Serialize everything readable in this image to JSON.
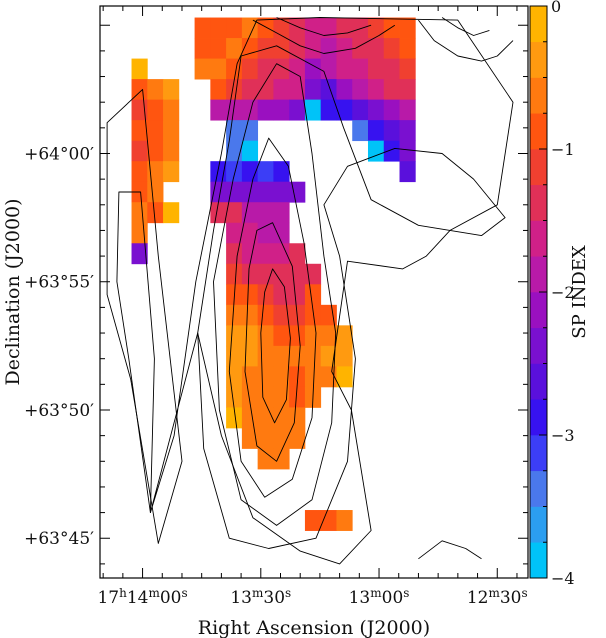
{
  "chart_data": {
    "type": "heatmap",
    "title": "",
    "xlabel": "Right Ascension (J2000)",
    "ylabel": "Declination (J2000)",
    "x_ticks": [
      {
        "ra_s": 840,
        "h": "17",
        "m": "14",
        "s": "00",
        "full": true
      },
      {
        "ra_s": 810,
        "m": "13",
        "s": "30"
      },
      {
        "ra_s": 780,
        "m": "13",
        "s": "00"
      },
      {
        "ra_s": 750,
        "m": "12",
        "s": "30"
      }
    ],
    "y_ticks": [
      {
        "dec_min": 45,
        "label": "+63°45′"
      },
      {
        "dec_min": 50,
        "label": "+63°50′"
      },
      {
        "dec_min": 55,
        "label": "+63°55′"
      },
      {
        "dec_min": 60,
        "label": "+64°00′"
      }
    ],
    "x_range_ra_s": [
      850.8,
      742.2
    ],
    "y_range_dec_min": [
      43.45,
      65.75
    ],
    "colorbar": {
      "label": "SP INDEX",
      "range": [
        -4,
        0
      ],
      "ticks": [
        0,
        -1,
        -2,
        -3,
        -4
      ],
      "tick_labels": [
        "0",
        "−1",
        "−2",
        "−3",
        "−4"
      ],
      "colors": [
        "#00c3f8",
        "#2b9ef0",
        "#4a78ec",
        "#3c3ef6",
        "#3712f0",
        "#5a10dc",
        "#7a10d0",
        "#9a10c0",
        "#b81aa8",
        "#d02088",
        "#e03058",
        "#f04030",
        "#ff5510",
        "#ff7a10",
        "#ff9a10",
        "#ffb400"
      ]
    },
    "cell_size": {
      "ra_s": 4.0,
      "dec_min": 0.8
    },
    "first_cell_ra_s": 842.8,
    "first_cell_dec_min": 65.3,
    "grid_legend": "Each row lists cell values from the first column east to west; null = blank",
    "grid": [
      [
        null,
        null,
        null,
        null,
        -0.8,
        -0.8,
        -0.8,
        -0.7,
        -1.0,
        -1.1,
        -1.3,
        -1.6,
        -1.6,
        -1.5,
        -1.3,
        -1.1,
        -1.0,
        -0.9
      ],
      [
        null,
        null,
        null,
        null,
        -0.8,
        -0.8,
        -0.7,
        -0.9,
        -1.1,
        -1.2,
        -1.4,
        -1.7,
        -1.9,
        -1.6,
        -1.4,
        -1.3,
        -1.1,
        -1.0
      ],
      [
        -0.2,
        null,
        null,
        null,
        -0.6,
        -0.7,
        -0.9,
        -1.1,
        -1.3,
        -1.4,
        -1.6,
        -2.1,
        -2.0,
        -1.7,
        -1.6,
        -1.4,
        -1.3,
        -1.2
      ],
      [
        -0.8,
        -0.6,
        -0.5,
        null,
        null,
        -1.0,
        -1.2,
        -1.3,
        -1.5,
        -1.6,
        -1.7,
        -2.3,
        -2.6,
        -2.1,
        -1.8,
        -1.6,
        -1.5,
        -1.4
      ],
      [
        -1.2,
        -0.9,
        -0.7,
        null,
        null,
        -1.9,
        -1.9,
        -1.8,
        -2.1,
        -2.2,
        -2.4,
        -4.0,
        -2.9,
        -2.8,
        -2.6,
        -2.4,
        -2.2,
        -2.0
      ],
      [
        -0.9,
        -0.8,
        -0.6,
        null,
        null,
        null,
        -3.5,
        -3.3,
        null,
        null,
        null,
        null,
        null,
        null,
        -3.3,
        -2.8,
        -2.6,
        -2.3
      ],
      [
        -1.1,
        -0.9,
        -0.6,
        null,
        null,
        null,
        -3.5,
        -4.0,
        null,
        null,
        null,
        null,
        null,
        null,
        null,
        -4.0,
        -3.0,
        -2.4
      ],
      [
        -0.8,
        -0.6,
        -0.3,
        null,
        null,
        -3.0,
        -3.1,
        -3.0,
        -3.1,
        -2.9,
        null,
        null,
        null,
        null,
        null,
        null,
        null,
        -2.6
      ],
      [
        -0.9,
        -0.6,
        null,
        null,
        null,
        -2.5,
        -2.4,
        -2.5,
        -2.5,
        -2.5,
        -2.4,
        null,
        null,
        null,
        null,
        null,
        null,
        null
      ],
      [
        -0.7,
        -0.8,
        -0.2,
        null,
        null,
        -1.3,
        -1.5,
        -1.8,
        -1.9,
        -2.0,
        null,
        null,
        null,
        null,
        null,
        null,
        null,
        null
      ],
      [
        -0.7,
        null,
        null,
        null,
        null,
        null,
        -1.7,
        -1.7,
        -1.9,
        -1.8,
        null,
        null,
        null,
        null,
        null,
        null,
        null,
        null
      ],
      [
        -2.3,
        null,
        null,
        null,
        null,
        null,
        -1.5,
        -1.6,
        -1.7,
        -1.6,
        -1.4,
        null,
        null,
        null,
        null,
        null,
        null,
        null
      ],
      [
        null,
        null,
        null,
        null,
        null,
        null,
        -1.1,
        -1.3,
        -1.5,
        -1.5,
        -1.5,
        -1.3,
        null,
        null,
        null,
        null,
        null,
        null
      ],
      [
        null,
        null,
        null,
        null,
        null,
        null,
        -0.8,
        -1.0,
        -1.2,
        -1.3,
        -1.3,
        -1.0,
        null,
        null,
        null,
        null,
        null,
        null
      ],
      [
        null,
        null,
        null,
        null,
        null,
        null,
        -0.6,
        -0.7,
        -1.0,
        -1.1,
        -1.1,
        -0.9,
        -0.8,
        null,
        null,
        null,
        null,
        null
      ],
      [
        null,
        null,
        null,
        null,
        null,
        null,
        -0.4,
        -0.5,
        -0.7,
        -0.8,
        -0.8,
        -0.7,
        -0.6,
        -0.4,
        null,
        null,
        null,
        null
      ],
      [
        null,
        null,
        null,
        null,
        null,
        null,
        -0.4,
        -0.5,
        -0.6,
        -0.7,
        -0.7,
        -0.6,
        -0.5,
        -0.3,
        null,
        null,
        null,
        null
      ],
      [
        null,
        null,
        null,
        null,
        null,
        null,
        -0.5,
        -0.6,
        -0.7,
        -0.7,
        -0.8,
        -0.7,
        -0.6,
        -0.2,
        null,
        null,
        null,
        null
      ],
      [
        null,
        null,
        null,
        null,
        null,
        null,
        -0.3,
        -0.6,
        -0.7,
        -0.7,
        -0.8,
        -0.7,
        null,
        null,
        null,
        null,
        null,
        null
      ],
      [
        null,
        null,
        null,
        null,
        null,
        null,
        -0.2,
        -0.7,
        -0.7,
        -0.7,
        -0.6,
        null,
        null,
        null,
        null,
        null,
        null,
        null
      ],
      [
        null,
        null,
        null,
        null,
        null,
        null,
        null,
        -0.7,
        -0.6,
        -0.6,
        -0.6,
        null,
        null,
        null,
        null,
        null,
        null,
        null
      ],
      [
        null,
        null,
        null,
        null,
        null,
        null,
        null,
        null,
        -0.6,
        -0.6,
        null,
        null,
        null,
        null,
        null,
        null,
        null,
        null
      ],
      [
        null,
        null,
        null,
        null,
        null,
        null,
        null,
        null,
        null,
        null,
        null,
        null,
        null,
        null,
        null,
        null,
        null,
        null
      ],
      [
        null,
        null,
        null,
        null,
        null,
        null,
        null,
        null,
        null,
        null,
        null,
        null,
        null,
        null,
        null,
        null,
        null,
        null
      ],
      [
        null,
        null,
        null,
        null,
        null,
        null,
        null,
        null,
        null,
        null,
        null,
        -0.8,
        -0.8,
        -0.7,
        null,
        null,
        null,
        null
      ]
    ],
    "contours": [
      {
        "name": "west-outer",
        "points": [
          [
            836.0,
            44.8
          ],
          [
            843.0,
            51.2
          ],
          [
            849.0,
            54.5
          ],
          [
            849.0,
            61.2
          ],
          [
            840.0,
            62.5
          ],
          [
            836.0,
            56.0
          ],
          [
            830.0,
            48.0
          ]
        ]
      },
      {
        "name": "west-inner",
        "points": [
          [
            838.0,
            46.0
          ],
          [
            843.5,
            52.0
          ],
          [
            846.5,
            55.0
          ],
          [
            846.0,
            58.5
          ],
          [
            840.5,
            58.5
          ],
          [
            837.0,
            52.0
          ]
        ]
      },
      {
        "name": "main-1",
        "points": [
          [
            838.0,
            46.0
          ],
          [
            832.0,
            49.0
          ],
          [
            826.5,
            55.0
          ],
          [
            820.0,
            60.0
          ],
          [
            816.0,
            63.5
          ],
          [
            811.0,
            65.2
          ],
          [
            795.0,
            65.3
          ],
          [
            760.0,
            65.2
          ],
          [
            746.0,
            62.0
          ],
          [
            750.0,
            58.0
          ],
          [
            762.0,
            57.0
          ],
          [
            768.0,
            56.0
          ],
          [
            774.0,
            55.5
          ],
          [
            788.0,
            55.8
          ],
          [
            792.0,
            51.5
          ],
          [
            787.0,
            50.0
          ],
          [
            782.0,
            45.3
          ],
          [
            790.0,
            44.0
          ],
          [
            800.0,
            44.5
          ],
          [
            812.0,
            45.8
          ],
          [
            820.0,
            49.0
          ],
          [
            826.0,
            53.0
          ]
        ]
      },
      {
        "name": "main-2",
        "points": [
          [
            815.0,
            63.8
          ],
          [
            818.0,
            60.5
          ],
          [
            822.0,
            57.0
          ],
          [
            826.0,
            53.0
          ],
          [
            824.5,
            48.5
          ],
          [
            818.0,
            45.0
          ],
          [
            808.0,
            44.6
          ],
          [
            796.0,
            45.0
          ],
          [
            788.0,
            48.0
          ],
          [
            786.0,
            52.0
          ],
          [
            790.0,
            56.0
          ],
          [
            794.0,
            58.0
          ],
          [
            788.0,
            59.5
          ],
          [
            776.0,
            60.2
          ],
          [
            764.0,
            60.0
          ],
          [
            756.0,
            59.0
          ],
          [
            748.0,
            57.5
          ],
          [
            754.0,
            56.8
          ],
          [
            770.0,
            57.2
          ],
          [
            782.0,
            58.2
          ],
          [
            789.0,
            61.0
          ],
          [
            794.0,
            63.2
          ],
          [
            806.0,
            64.2
          ]
        ]
      },
      {
        "name": "main-3",
        "points": [
          [
            812.0,
            62.0
          ],
          [
            817.0,
            59.0
          ],
          [
            822.0,
            55.0
          ],
          [
            820.5,
            50.0
          ],
          [
            815.0,
            46.5
          ],
          [
            806.0,
            45.5
          ],
          [
            797.0,
            46.5
          ],
          [
            792.0,
            49.5
          ],
          [
            791.0,
            53.0
          ],
          [
            794.0,
            56.0
          ],
          [
            797.0,
            60.0
          ],
          [
            800.0,
            63.0
          ],
          [
            806.0,
            63.5
          ]
        ]
      },
      {
        "name": "main-4",
        "points": [
          [
            812.0,
            59.0
          ],
          [
            816.0,
            56.0
          ],
          [
            818.0,
            51.5
          ],
          [
            815.0,
            48.0
          ],
          [
            809.0,
            46.6
          ],
          [
            802.0,
            47.3
          ],
          [
            797.0,
            49.7
          ],
          [
            796.0,
            53.0
          ],
          [
            799.0,
            56.5
          ],
          [
            803.0,
            59.5
          ],
          [
            808.0,
            60.6
          ]
        ]
      },
      {
        "name": "main-5",
        "points": [
          [
            813.0,
            55.5
          ],
          [
            814.0,
            51.5
          ],
          [
            811.0,
            48.6
          ],
          [
            806.0,
            48.0
          ],
          [
            801.5,
            49.5
          ],
          [
            800.0,
            52.5
          ],
          [
            802.0,
            55.6
          ],
          [
            807.0,
            57.3
          ],
          [
            811.0,
            57.0
          ]
        ]
      },
      {
        "name": "main-6",
        "points": [
          [
            810.0,
            53.0
          ],
          [
            809.5,
            50.5
          ],
          [
            806.5,
            49.5
          ],
          [
            803.5,
            50.4
          ],
          [
            802.5,
            52.8
          ],
          [
            804.0,
            54.8
          ],
          [
            807.0,
            55.5
          ],
          [
            809.0,
            54.6
          ]
        ]
      },
      {
        "name": "ridge-1",
        "points": [
          [
            812.0,
            65.2
          ],
          [
            806.0,
            64.7
          ],
          [
            800.0,
            64.2
          ],
          [
            794.0,
            63.9
          ],
          [
            786.0,
            64.1
          ],
          [
            780.0,
            64.6
          ],
          [
            776.0,
            65.0
          ]
        ]
      },
      {
        "name": "ridge-2",
        "points": [
          [
            806.0,
            65.3
          ],
          [
            800.0,
            64.9
          ],
          [
            794.0,
            64.6
          ],
          [
            788.0,
            64.7
          ],
          [
            782.0,
            65.0
          ]
        ]
      },
      {
        "name": "ridge-3",
        "points": [
          [
            770.0,
            65.2
          ],
          [
            766.0,
            64.4
          ],
          [
            760.0,
            63.8
          ],
          [
            754.0,
            63.6
          ],
          [
            750.0,
            63.8
          ],
          [
            746.0,
            64.4
          ]
        ]
      },
      {
        "name": "ridge-4",
        "points": [
          [
            764.0,
            65.3
          ],
          [
            760.0,
            64.9
          ],
          [
            756.0,
            64.6
          ],
          [
            752.0,
            64.8
          ]
        ]
      },
      {
        "name": "south-blob",
        "points": [
          [
            770.0,
            44.2
          ],
          [
            764.0,
            44.9
          ],
          [
            758.0,
            44.6
          ],
          [
            754.0,
            44.2
          ]
        ]
      }
    ]
  }
}
